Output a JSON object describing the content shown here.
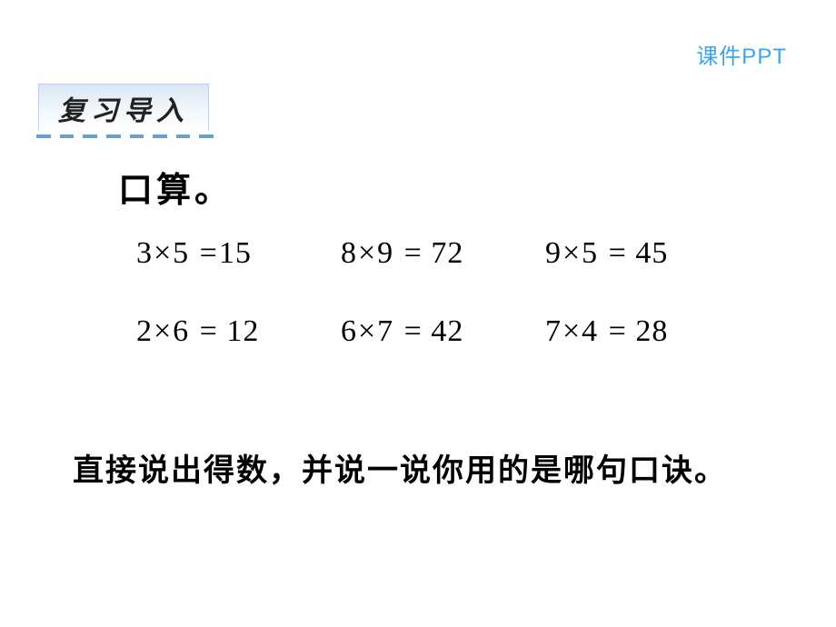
{
  "watermark": {
    "text": "课件PPT",
    "color": "#3aa6e8"
  },
  "section_header": {
    "text": "复习导入",
    "dash_color": "#6b9fd2",
    "dash_count": 8
  },
  "subtitle": "口算。",
  "equations": {
    "rows": [
      [
        {
          "expr": "3×5 =",
          "ans": "15"
        },
        {
          "expr": "8×9 =",
          "ans": "72"
        },
        {
          "expr": "9×5 =",
          "ans": "45"
        }
      ],
      [
        {
          "expr": "2×6 =",
          "ans": "12"
        },
        {
          "expr": "6×7 =",
          "ans": "42"
        },
        {
          "expr": "7×4 =",
          "ans": "28"
        }
      ]
    ]
  },
  "instruction": "直接说出得数，并说一说你用的是哪句口诀。",
  "colors": {
    "text": "#000000",
    "background": "#ffffff"
  }
}
